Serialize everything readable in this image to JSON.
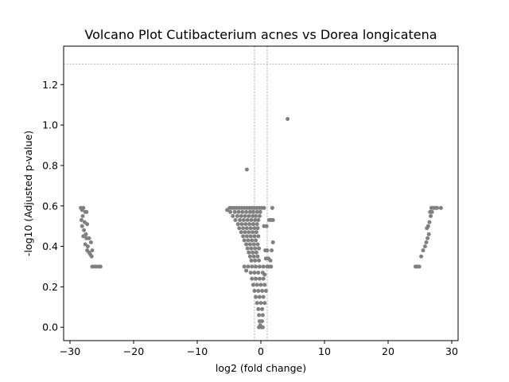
{
  "chart_data": {
    "type": "scatter",
    "title": "Volcano Plot Cutibacterium acnes vs Dorea longicatena",
    "xlabel": "log2 (fold change)",
    "ylabel": "-log10 (Adjusted p-value)",
    "xlim": [
      -31,
      31
    ],
    "ylim": [
      -0.066,
      1.39
    ],
    "xticks": [
      -30,
      -20,
      -10,
      0,
      10,
      20,
      30
    ],
    "xtick_labels": [
      "−30",
      "−20",
      "−10",
      "0",
      "10",
      "20",
      "30"
    ],
    "yticks": [
      0.0,
      0.2,
      0.4,
      0.6,
      0.8,
      1.0,
      1.2
    ],
    "ytick_labels": [
      "0.0",
      "0.2",
      "0.4",
      "0.6",
      "0.8",
      "1.0",
      "1.2"
    ],
    "thresholds": {
      "horizontal_y": 1.301,
      "vertical_x": [
        -1,
        1
      ]
    },
    "grid": false,
    "legend": "none",
    "colors": {
      "points": "#808080",
      "threshold_lines": "#808080",
      "axes": "#000000"
    },
    "points": [
      {
        "x": -28.3,
        "y": 0.59
      },
      {
        "x": -27.9,
        "y": 0.59
      },
      {
        "x": -28.1,
        "y": 0.58
      },
      {
        "x": -27.6,
        "y": 0.57
      },
      {
        "x": -27.4,
        "y": 0.57
      },
      {
        "x": -28.0,
        "y": 0.55
      },
      {
        "x": -28.2,
        "y": 0.53
      },
      {
        "x": -27.7,
        "y": 0.52
      },
      {
        "x": -27.3,
        "y": 0.51
      },
      {
        "x": -28.1,
        "y": 0.5
      },
      {
        "x": -27.8,
        "y": 0.48
      },
      {
        "x": -27.5,
        "y": 0.46
      },
      {
        "x": -27.9,
        "y": 0.45
      },
      {
        "x": -27.4,
        "y": 0.44
      },
      {
        "x": -27.0,
        "y": 0.44
      },
      {
        "x": -26.7,
        "y": 0.42
      },
      {
        "x": -27.6,
        "y": 0.41
      },
      {
        "x": -27.2,
        "y": 0.4
      },
      {
        "x": -27.3,
        "y": 0.38
      },
      {
        "x": -26.5,
        "y": 0.38
      },
      {
        "x": -27.0,
        "y": 0.37
      },
      {
        "x": -26.8,
        "y": 0.36
      },
      {
        "x": -26.6,
        "y": 0.35
      },
      {
        "x": -26.5,
        "y": 0.3
      },
      {
        "x": -26.2,
        "y": 0.3
      },
      {
        "x": -25.9,
        "y": 0.3
      },
      {
        "x": -25.5,
        "y": 0.3
      },
      {
        "x": -25.2,
        "y": 0.3
      },
      {
        "x": -5.3,
        "y": 0.58
      },
      {
        "x": -4.9,
        "y": 0.59
      },
      {
        "x": -4.6,
        "y": 0.59
      },
      {
        "x": -4.2,
        "y": 0.59
      },
      {
        "x": -3.8,
        "y": 0.59
      },
      {
        "x": -3.4,
        "y": 0.59
      },
      {
        "x": -3.0,
        "y": 0.59
      },
      {
        "x": -2.6,
        "y": 0.59
      },
      {
        "x": -2.2,
        "y": 0.59
      },
      {
        "x": -1.8,
        "y": 0.59
      },
      {
        "x": -1.4,
        "y": 0.59
      },
      {
        "x": -1.1,
        "y": 0.59
      },
      {
        "x": -0.7,
        "y": 0.59
      },
      {
        "x": -0.3,
        "y": 0.59
      },
      {
        "x": 0.1,
        "y": 0.59
      },
      {
        "x": 0.5,
        "y": 0.59
      },
      {
        "x": -4.8,
        "y": 0.57
      },
      {
        "x": -4.1,
        "y": 0.57
      },
      {
        "x": -3.5,
        "y": 0.57
      },
      {
        "x": -2.9,
        "y": 0.57
      },
      {
        "x": -2.3,
        "y": 0.57
      },
      {
        "x": -1.7,
        "y": 0.57
      },
      {
        "x": -1.2,
        "y": 0.57
      },
      {
        "x": -0.6,
        "y": 0.57
      },
      {
        "x": -0.1,
        "y": 0.57
      },
      {
        "x": -4.4,
        "y": 0.55
      },
      {
        "x": -3.7,
        "y": 0.55
      },
      {
        "x": -3.1,
        "y": 0.55
      },
      {
        "x": -2.5,
        "y": 0.55
      },
      {
        "x": -1.9,
        "y": 0.55
      },
      {
        "x": -1.3,
        "y": 0.55
      },
      {
        "x": -0.8,
        "y": 0.55
      },
      {
        "x": -0.2,
        "y": 0.55
      },
      {
        "x": -4.0,
        "y": 0.53
      },
      {
        "x": -3.3,
        "y": 0.53
      },
      {
        "x": -2.7,
        "y": 0.53
      },
      {
        "x": -2.1,
        "y": 0.53
      },
      {
        "x": -1.5,
        "y": 0.53
      },
      {
        "x": -0.9,
        "y": 0.53
      },
      {
        "x": -0.4,
        "y": 0.53
      },
      {
        "x": -3.6,
        "y": 0.51
      },
      {
        "x": -3.0,
        "y": 0.51
      },
      {
        "x": -2.4,
        "y": 0.51
      },
      {
        "x": -1.8,
        "y": 0.51
      },
      {
        "x": -1.2,
        "y": 0.51
      },
      {
        "x": -0.6,
        "y": 0.51
      },
      {
        "x": -3.4,
        "y": 0.49
      },
      {
        "x": -2.8,
        "y": 0.49
      },
      {
        "x": -2.2,
        "y": 0.49
      },
      {
        "x": -1.6,
        "y": 0.49
      },
      {
        "x": -1.0,
        "y": 0.49
      },
      {
        "x": -0.5,
        "y": 0.49
      },
      {
        "x": -3.1,
        "y": 0.47
      },
      {
        "x": -2.5,
        "y": 0.47
      },
      {
        "x": -1.9,
        "y": 0.47
      },
      {
        "x": -1.3,
        "y": 0.47
      },
      {
        "x": -0.7,
        "y": 0.47
      },
      {
        "x": -2.8,
        "y": 0.45
      },
      {
        "x": -2.2,
        "y": 0.45
      },
      {
        "x": -1.6,
        "y": 0.45
      },
      {
        "x": -1.0,
        "y": 0.45
      },
      {
        "x": -0.4,
        "y": 0.45
      },
      {
        "x": -2.6,
        "y": 0.43
      },
      {
        "x": -2.0,
        "y": 0.43
      },
      {
        "x": -1.4,
        "y": 0.43
      },
      {
        "x": -0.8,
        "y": 0.43
      },
      {
        "x": -2.3,
        "y": 0.41
      },
      {
        "x": -1.7,
        "y": 0.41
      },
      {
        "x": -1.1,
        "y": 0.41
      },
      {
        "x": -0.5,
        "y": 0.41
      },
      {
        "x": -2.1,
        "y": 0.39
      },
      {
        "x": -1.5,
        "y": 0.39
      },
      {
        "x": -0.9,
        "y": 0.39
      },
      {
        "x": -0.3,
        "y": 0.39
      },
      {
        "x": -1.9,
        "y": 0.37
      },
      {
        "x": -1.3,
        "y": 0.37
      },
      {
        "x": -0.7,
        "y": 0.37
      },
      {
        "x": -1.7,
        "y": 0.35
      },
      {
        "x": -1.1,
        "y": 0.35
      },
      {
        "x": -0.5,
        "y": 0.35
      },
      {
        "x": -1.5,
        "y": 0.33
      },
      {
        "x": -0.9,
        "y": 0.33
      },
      {
        "x": -0.3,
        "y": 0.33
      },
      {
        "x": -2.6,
        "y": 0.3
      },
      {
        "x": -2.0,
        "y": 0.3
      },
      {
        "x": -1.4,
        "y": 0.3
      },
      {
        "x": -0.8,
        "y": 0.3
      },
      {
        "x": -0.2,
        "y": 0.3
      },
      {
        "x": 0.4,
        "y": 0.3
      },
      {
        "x": 1.0,
        "y": 0.3
      },
      {
        "x": 1.6,
        "y": 0.3
      },
      {
        "x": -2.3,
        "y": 0.28
      },
      {
        "x": -1.6,
        "y": 0.27
      },
      {
        "x": -1.0,
        "y": 0.27
      },
      {
        "x": -0.4,
        "y": 0.27
      },
      {
        "x": 0.3,
        "y": 0.27
      },
      {
        "x": -1.4,
        "y": 0.24
      },
      {
        "x": -0.8,
        "y": 0.24
      },
      {
        "x": -0.2,
        "y": 0.24
      },
      {
        "x": 0.4,
        "y": 0.24
      },
      {
        "x": -1.2,
        "y": 0.21
      },
      {
        "x": -0.6,
        "y": 0.21
      },
      {
        "x": 0.0,
        "y": 0.21
      },
      {
        "x": 0.6,
        "y": 0.21
      },
      {
        "x": -1.0,
        "y": 0.18
      },
      {
        "x": -0.4,
        "y": 0.18
      },
      {
        "x": 0.2,
        "y": 0.18
      },
      {
        "x": 0.8,
        "y": 0.18
      },
      {
        "x": -0.8,
        "y": 0.15
      },
      {
        "x": -0.2,
        "y": 0.15
      },
      {
        "x": 0.4,
        "y": 0.15
      },
      {
        "x": -0.6,
        "y": 0.12
      },
      {
        "x": 0.0,
        "y": 0.12
      },
      {
        "x": 0.6,
        "y": 0.12
      },
      {
        "x": -0.4,
        "y": 0.09
      },
      {
        "x": 0.2,
        "y": 0.09
      },
      {
        "x": -0.3,
        "y": 0.06
      },
      {
        "x": 0.3,
        "y": 0.06
      },
      {
        "x": -0.2,
        "y": 0.03
      },
      {
        "x": 0.2,
        "y": 0.03
      },
      {
        "x": -0.1,
        "y": 0.01
      },
      {
        "x": 0.1,
        "y": 0.0
      },
      {
        "x": 0.3,
        "y": 0.0
      },
      {
        "x": -0.3,
        "y": 0.0
      },
      {
        "x": 0.7,
        "y": 0.38
      },
      {
        "x": 1.0,
        "y": 0.38
      },
      {
        "x": 0.8,
        "y": 0.34
      },
      {
        "x": 1.2,
        "y": 0.34
      },
      {
        "x": 0.6,
        "y": 0.26
      },
      {
        "x": 1.3,
        "y": 0.3
      },
      {
        "x": 1.5,
        "y": 0.33
      },
      {
        "x": 1.7,
        "y": 0.38
      },
      {
        "x": 0.5,
        "y": 0.5
      },
      {
        "x": 0.9,
        "y": 0.5
      },
      {
        "x": 1.3,
        "y": 0.53
      },
      {
        "x": 1.6,
        "y": 0.53
      },
      {
        "x": 1.9,
        "y": 0.53
      },
      {
        "x": 1.8,
        "y": 0.59
      },
      {
        "x": 1.9,
        "y": 0.42
      },
      {
        "x": -2.2,
        "y": 0.78
      },
      {
        "x": 4.2,
        "y": 1.03
      },
      {
        "x": 24.3,
        "y": 0.3
      },
      {
        "x": 24.6,
        "y": 0.3
      },
      {
        "x": 24.9,
        "y": 0.3
      },
      {
        "x": 25.2,
        "y": 0.35
      },
      {
        "x": 25.5,
        "y": 0.38
      },
      {
        "x": 25.8,
        "y": 0.4
      },
      {
        "x": 26.0,
        "y": 0.42
      },
      {
        "x": 26.2,
        "y": 0.44
      },
      {
        "x": 26.4,
        "y": 0.46
      },
      {
        "x": 26.1,
        "y": 0.49
      },
      {
        "x": 26.3,
        "y": 0.5
      },
      {
        "x": 26.5,
        "y": 0.52
      },
      {
        "x": 26.7,
        "y": 0.55
      },
      {
        "x": 26.6,
        "y": 0.57
      },
      {
        "x": 26.9,
        "y": 0.57
      },
      {
        "x": 26.8,
        "y": 0.59
      },
      {
        "x": 27.1,
        "y": 0.59
      },
      {
        "x": 27.4,
        "y": 0.59
      },
      {
        "x": 27.7,
        "y": 0.59
      },
      {
        "x": 28.3,
        "y": 0.59
      }
    ]
  }
}
